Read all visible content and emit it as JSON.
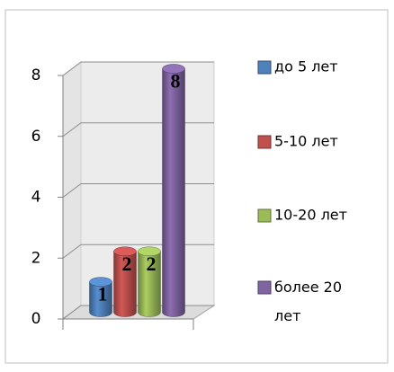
{
  "chart_data": {
    "type": "bar3d",
    "categories": [
      null
    ],
    "series": [
      {
        "name": "до 5 лет",
        "color": "#4f81bd",
        "values": [
          1
        ]
      },
      {
        "name": "5-10 лет",
        "color": "#c0504d",
        "values": [
          2
        ]
      },
      {
        "name": "10-20 лет",
        "color": "#9bbb59",
        "values": [
          2
        ]
      },
      {
        "name": "более 20 лет",
        "color": "#8064a2",
        "values": [
          8
        ]
      }
    ],
    "ylim": [
      0,
      8
    ],
    "yticks": [
      0,
      2,
      4,
      6,
      8
    ],
    "grid": true,
    "legend": "right"
  }
}
